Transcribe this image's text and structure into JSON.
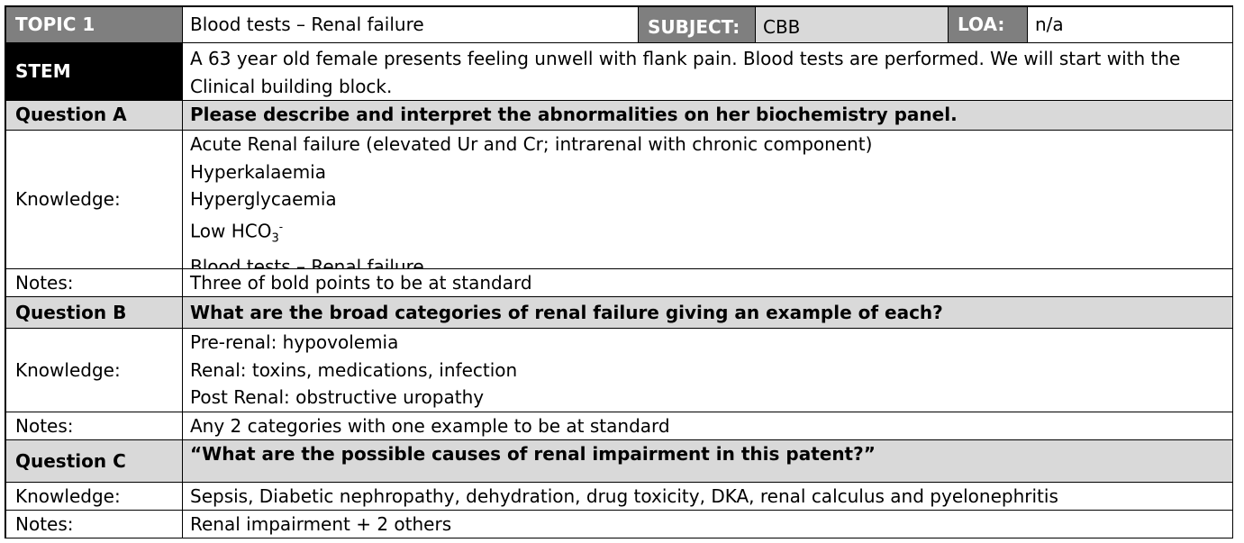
{
  "header": {
    "topic_label": "TOPIC 1",
    "topic_value": "Blood tests – Renal failure",
    "subject_label": "SUBJECT:",
    "subject_value": "CBB",
    "loa_label": "LOA:",
    "loa_value": "n/a"
  },
  "stem": {
    "label": "STEM",
    "lines": [
      "A 63 year old female presents feeling unwell with flank pain. Blood tests are performed. We will start with the",
      "Clinical building block."
    ]
  },
  "question_a": {
    "label": "Question A",
    "text": "Please describe and interpret the abnormalities on her biochemistry panel.",
    "knowledge_label": "Knowledge:",
    "knowledge_lines": [
      "Acute Renal failure (elevated Ur and Cr; intrarenal with chronic component)",
      "Hyperkalaemia",
      "Hyperglycaemia",
      "Low HCO",
      "Blood tests – Renal failure"
    ],
    "hco3_sub": "3",
    "hco3_sup": "-",
    "notes_label": "Notes:",
    "notes": "Three of bold points to be at standard"
  },
  "question_b": {
    "label": "Question B",
    "text": "What are the broad categories of renal failure giving an example of each?",
    "knowledge_label": "Knowledge:",
    "knowledge_lines": [
      "Pre-renal: hypovolemia",
      "Renal: toxins, medications, infection",
      "Post Renal: obstructive uropathy"
    ],
    "notes_label": "Notes:",
    "notes": "Any 2 categories with one example to be at standard"
  },
  "question_c": {
    "label": "Question C",
    "text": "“What are the possible causes of renal impairment in this patent?”",
    "knowledge_label": "Knowledge:",
    "knowledge": "Sepsis, Diabetic nephropathy, dehydration, drug toxicity, DKA, renal calculus and pyelonephritis",
    "notes_label": "Notes:",
    "notes": "Renal impairment + 2 others"
  }
}
